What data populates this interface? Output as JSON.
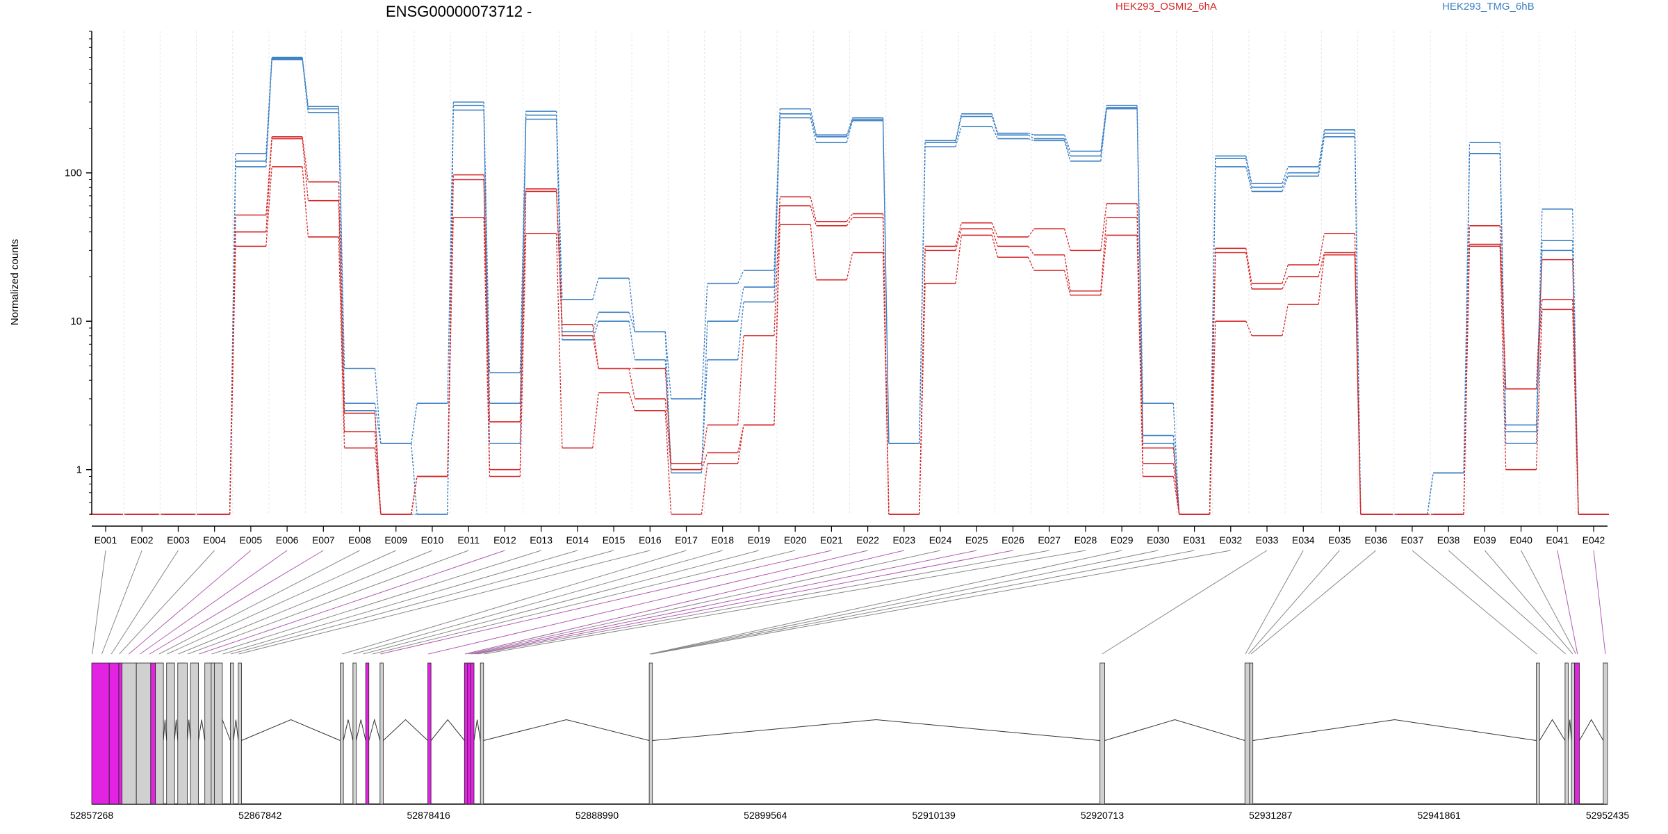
{
  "chart_data": {
    "type": "line",
    "title": "ENSG00000073712 -",
    "ylabel": "Normalized counts",
    "y_scale": "log",
    "ylim": [
      0.5,
      900
    ],
    "y_ticks": [
      1,
      10,
      100
    ],
    "y_tick_labels": [
      "1",
      "10",
      "100"
    ],
    "categories": [
      "E001",
      "E002",
      "E003",
      "E004",
      "E005",
      "E006",
      "E007",
      "E008",
      "E009",
      "E010",
      "E011",
      "E012",
      "E013",
      "E014",
      "E015",
      "E016",
      "E017",
      "E018",
      "E019",
      "E020",
      "E021",
      "E022",
      "E023",
      "E024",
      "E025",
      "E026",
      "E027",
      "E028",
      "E029",
      "E030",
      "E031",
      "E032",
      "E033",
      "E034",
      "E035",
      "E036",
      "E037",
      "E038",
      "E039",
      "E040",
      "E041",
      "E042"
    ],
    "legend": [
      {
        "label": "HEK293_OSMI2_6hA",
        "color": "#d62728"
      },
      {
        "label": "HEK293_TMG_6hB",
        "color": "#3a7fc2"
      }
    ],
    "series": [
      {
        "group": "HEK293_TMG_6hB",
        "color": "#3a7fc2",
        "values": [
          0,
          0,
          0,
          0,
          110,
          580,
          255,
          2.5,
          0,
          0,
          265,
          1.5,
          230,
          7.5,
          10,
          5.5,
          1.0,
          5.5,
          13.5,
          235,
          160,
          225,
          1.5,
          150,
          205,
          170,
          165,
          120,
          270,
          1.5,
          0,
          110,
          75,
          95,
          175,
          0,
          0,
          0,
          135,
          1.5,
          30,
          0
        ]
      },
      {
        "group": "HEK293_TMG_6hB",
        "color": "#3a7fc2",
        "values": [
          0,
          0,
          0,
          0,
          120,
          590,
          270,
          2.8,
          1.5,
          0,
          285,
          2.8,
          245,
          8.5,
          11.5,
          8.5,
          0.95,
          10,
          17,
          250,
          175,
          230,
          1.5,
          160,
          240,
          180,
          170,
          130,
          275,
          1.7,
          0,
          125,
          80,
          100,
          185,
          0,
          0,
          0.95,
          135,
          1.8,
          35,
          0
        ]
      },
      {
        "group": "HEK293_TMG_6hB",
        "color": "#3a7fc2",
        "values": [
          0,
          0,
          0,
          0,
          135,
          600,
          280,
          4.8,
          1.5,
          2.8,
          300,
          4.5,
          260,
          14,
          19.5,
          8.5,
          3.0,
          18,
          22,
          270,
          180,
          235,
          1.5,
          165,
          250,
          185,
          180,
          140,
          285,
          2.8,
          0,
          130,
          85,
          110,
          195,
          0,
          0,
          0.95,
          160,
          2.0,
          57,
          0
        ]
      },
      {
        "group": "HEK293_OSMI2_6hA",
        "color": "#d62728",
        "values": [
          0,
          0,
          0,
          0,
          32,
          110,
          37,
          1.4,
          0,
          0.9,
          50,
          0.9,
          39,
          1.4,
          3.3,
          2.5,
          0,
          1.1,
          2.0,
          45,
          19,
          29,
          0,
          18,
          38,
          27,
          22,
          15,
          38,
          0.9,
          0,
          10,
          8,
          13,
          28,
          0,
          0,
          0,
          32,
          1.0,
          12,
          0
        ]
      },
      {
        "group": "HEK293_OSMI2_6hA",
        "color": "#d62728",
        "values": [
          0,
          0,
          0,
          0,
          40,
          170,
          65,
          1.8,
          0,
          0.9,
          90,
          1.0,
          75,
          8,
          4.8,
          3.0,
          1.0,
          1.3,
          2.0,
          60,
          44,
          50,
          0,
          30,
          42,
          32,
          28,
          16,
          50,
          1.1,
          0,
          29,
          16.5,
          20,
          29,
          0,
          0,
          0,
          33,
          3.5,
          14,
          0
        ]
      },
      {
        "group": "HEK293_OSMI2_6hA",
        "color": "#d62728",
        "values": [
          0,
          0,
          0,
          0,
          52,
          175,
          87,
          2.4,
          0,
          0.9,
          97,
          2.1,
          78,
          9.5,
          4.8,
          4.8,
          1.1,
          2.0,
          8,
          69,
          47,
          53,
          0,
          32,
          46,
          37,
          42,
          30,
          62,
          1.4,
          0,
          31,
          18,
          24,
          39,
          0,
          0,
          0,
          44,
          3.5,
          26,
          0
        ]
      }
    ],
    "gene_model": {
      "coord_labels": [
        "52857268",
        "52867842",
        "52878416",
        "52888990",
        "52899564",
        "52910139",
        "52920713",
        "52931287",
        "52941861",
        "52952435"
      ],
      "region": [
        52857268,
        52952435
      ],
      "exons": [
        {
          "start": 52857268,
          "end": 52858368,
          "hl": true
        },
        {
          "start": 52858368,
          "end": 52858968,
          "hl": true
        },
        {
          "start": 52858968,
          "end": 52859168,
          "hl": true
        },
        {
          "start": 52859168,
          "end": 52860068,
          "hl": false
        },
        {
          "start": 52860068,
          "end": 52860968,
          "hl": false
        },
        {
          "start": 52860968,
          "end": 52861268,
          "hl": true
        },
        {
          "start": 52861268,
          "end": 52861768,
          "hl": false
        },
        {
          "start": 52861968,
          "end": 52862468,
          "hl": false
        },
        {
          "start": 52862668,
          "end": 52863268,
          "hl": false
        },
        {
          "start": 52863468,
          "end": 52863968,
          "hl": false
        },
        {
          "start": 52864368,
          "end": 52865468,
          "hl": false
        },
        {
          "start": 52864768,
          "end": 52864968,
          "hl": false
        },
        {
          "start": 52865968,
          "end": 52866168,
          "hl": false
        },
        {
          "start": 52866468,
          "end": 52866668,
          "hl": false
        },
        {
          "start": 52872868,
          "end": 52873068,
          "hl": false
        },
        {
          "start": 52873668,
          "end": 52873868,
          "hl": false
        },
        {
          "start": 52874468,
          "end": 52874668,
          "hl": true
        },
        {
          "start": 52875368,
          "end": 52875568,
          "hl": false
        },
        {
          "start": 52878368,
          "end": 52878568,
          "hl": true
        },
        {
          "start": 52880668,
          "end": 52880868,
          "hl": true
        },
        {
          "start": 52880868,
          "end": 52881068,
          "hl": true
        },
        {
          "start": 52881068,
          "end": 52881268,
          "hl": true
        },
        {
          "start": 52881668,
          "end": 52881868,
          "hl": false
        },
        {
          "start": 52892268,
          "end": 52892468,
          "hl": false
        },
        {
          "start": 52920568,
          "end": 52920868,
          "hl": false
        },
        {
          "start": 52929668,
          "end": 52929968,
          "hl": false
        },
        {
          "start": 52929968,
          "end": 52930168,
          "hl": false
        },
        {
          "start": 52947968,
          "end": 52948168,
          "hl": false
        },
        {
          "start": 52949768,
          "end": 52949968,
          "hl": false
        },
        {
          "start": 52950168,
          "end": 52950368,
          "hl": false
        },
        {
          "start": 52950368,
          "end": 52950668,
          "hl": true
        },
        {
          "start": 52952168,
          "end": 52952435,
          "hl": false
        }
      ],
      "exon_bin_positions": [
        52857300,
        52857900,
        52858500,
        52859000,
        52859600,
        52860300,
        52860900,
        52861500,
        52862000,
        52862700,
        52863300,
        52864000,
        52864800,
        52865500,
        52866000,
        52866500,
        52873000,
        52873700,
        52874300,
        52874900,
        52875400,
        52878400,
        52880700,
        52880900,
        52881100,
        52881300,
        52881500,
        52881900,
        52892300,
        52892350,
        52892400,
        52892450,
        52920700,
        52929700,
        52929900,
        52930050,
        52948000,
        52949800,
        52950250,
        52950450,
        52950550,
        52952300
      ],
      "highlight_bins": [
        4,
        5,
        6,
        11,
        20,
        21,
        22,
        24,
        25,
        40,
        41
      ],
      "highlight_color": "#e223e2",
      "connector_hl_color": "#b15ab1",
      "connector_color": "#888888"
    }
  }
}
